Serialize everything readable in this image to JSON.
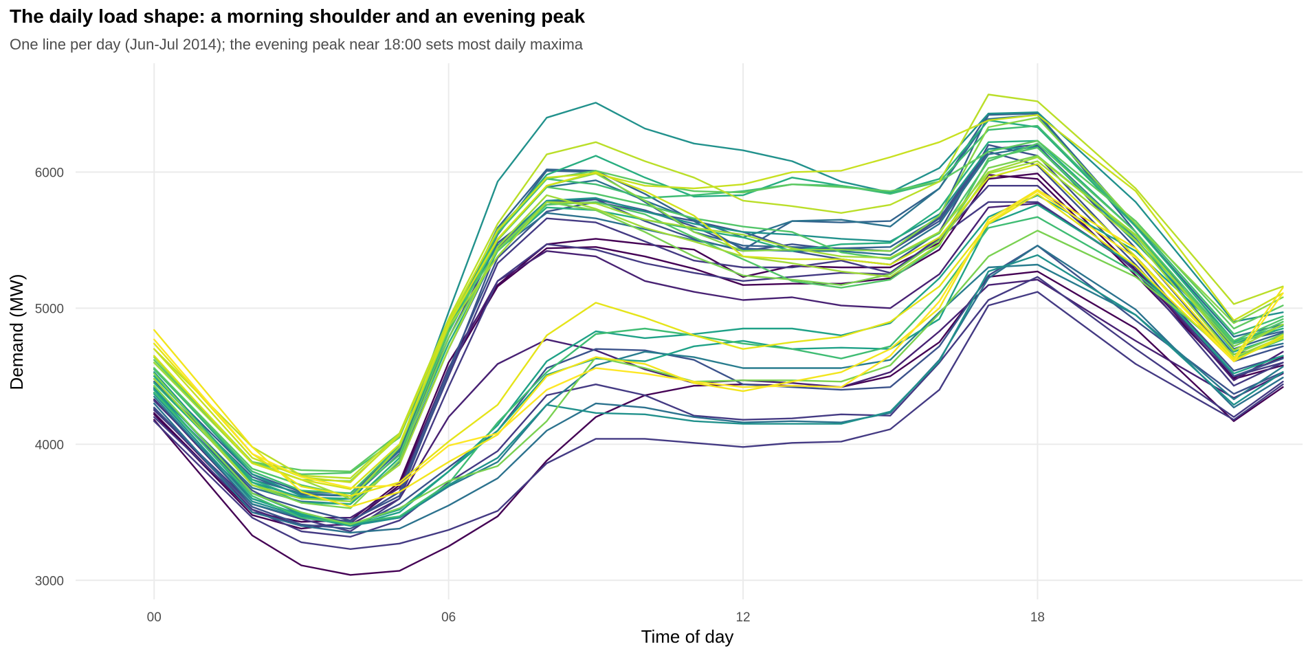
{
  "chart_data": {
    "type": "line",
    "title": "The daily load shape: a morning shoulder and an evening peak",
    "subtitle": "One line per day (Jun-Jul 2014); the evening peak near 18:00 sets most daily maxima",
    "xlabel": "Time of day",
    "ylabel": "Demand (MW)",
    "x": [
      0,
      2,
      3,
      4,
      5,
      6,
      7,
      8,
      9,
      10,
      11,
      12,
      13,
      14,
      15,
      16,
      17,
      18,
      20,
      22,
      23
    ],
    "xlim": [
      -1.6,
      23.4
    ],
    "ylim": [
      2860,
      6800
    ],
    "x_ticks": [
      0,
      6,
      12,
      18
    ],
    "x_tick_labels": [
      "00",
      "06",
      "12",
      "18"
    ],
    "y_ticks": [
      3000,
      4000,
      5000,
      6000
    ],
    "y_tick_labels": [
      "3000",
      "4000",
      "5000",
      "6000"
    ],
    "grid": true,
    "legend": "none",
    "color_scale": "viridis, ordered by day",
    "series": [
      {
        "color": "#440154",
        "values": [
          4180,
          3330,
          3110,
          3040,
          3070,
          3250,
          3470,
          3880,
          4200,
          4360,
          4430,
          4440,
          4430,
          4420,
          4500,
          4750,
          5230,
          5270,
          4850,
          4170,
          4420
        ]
      },
      {
        "color": "#440154",
        "values": [
          4220,
          3480,
          3380,
          3420,
          3700,
          4550,
          5160,
          5440,
          5450,
          5380,
          5290,
          5170,
          5180,
          5180,
          5220,
          5430,
          5950,
          5990,
          5280,
          4480,
          4580
        ]
      },
      {
        "color": "#440154",
        "values": [
          4230,
          3500,
          3430,
          3440,
          3720,
          4600,
          5170,
          5470,
          5510,
          5470,
          5430,
          5230,
          5310,
          5300,
          5300,
          5480,
          5980,
          5950,
          5240,
          4490,
          4640
        ]
      },
      {
        "color": "#482173",
        "values": [
          4260,
          3520,
          3400,
          3410,
          3600,
          4200,
          4590,
          4770,
          4690,
          4550,
          4450,
          4470,
          4450,
          4420,
          4530,
          4830,
          5170,
          5210,
          4760,
          4340,
          4520
        ]
      },
      {
        "color": "#482173",
        "values": [
          4330,
          3560,
          3460,
          3460,
          3680,
          4560,
          5200,
          5420,
          5380,
          5200,
          5120,
          5060,
          5080,
          5020,
          5000,
          5250,
          5740,
          5770,
          5300,
          4470,
          4680
        ]
      },
      {
        "color": "#443a83",
        "values": [
          4170,
          3460,
          3280,
          3230,
          3270,
          3370,
          3510,
          3860,
          4040,
          4040,
          4010,
          3980,
          4010,
          4020,
          4110,
          4400,
          5020,
          5120,
          4590,
          4180,
          4440
        ]
      },
      {
        "color": "#443a83",
        "values": [
          4200,
          3520,
          3360,
          3320,
          3440,
          3720,
          3950,
          4360,
          4440,
          4360,
          4210,
          4180,
          4190,
          4220,
          4210,
          4600,
          5060,
          5230,
          4700,
          4200,
          4460
        ]
      },
      {
        "color": "#443a83",
        "values": [
          4250,
          3560,
          3450,
          3360,
          3600,
          4420,
          5200,
          5470,
          5430,
          5330,
          5260,
          5200,
          5230,
          5260,
          5250,
          5510,
          5900,
          5900,
          5270,
          4430,
          4600
        ]
      },
      {
        "color": "#443a83",
        "values": [
          4320,
          3600,
          3480,
          3430,
          3650,
          4500,
          5330,
          5660,
          5630,
          5490,
          5350,
          5300,
          5300,
          5350,
          5260,
          5520,
          5780,
          5780,
          5300,
          4500,
          4600
        ]
      },
      {
        "color": "#3b528b",
        "values": [
          4410,
          3660,
          3480,
          3430,
          3650,
          4550,
          5370,
          5710,
          5780,
          5710,
          5640,
          5560,
          5440,
          5440,
          5420,
          5640,
          6150,
          6050,
          5320,
          4540,
          4650
        ]
      },
      {
        "color": "#3b528b",
        "values": [
          4380,
          3640,
          3530,
          3440,
          3620,
          4520,
          5440,
          5780,
          5800,
          5720,
          5600,
          5440,
          5420,
          5360,
          5320,
          5560,
          6200,
          6120,
          5360,
          4500,
          4630
        ]
      },
      {
        "color": "#3b528b",
        "values": [
          4270,
          3540,
          3410,
          3380,
          3560,
          3830,
          4100,
          4560,
          4700,
          4690,
          4620,
          4440,
          4420,
          4400,
          4420,
          4720,
          5240,
          5460,
          4910,
          4370,
          4530
        ]
      },
      {
        "color": "#3b528b",
        "values": [
          4480,
          3700,
          3600,
          3600,
          3930,
          4780,
          5480,
          5760,
          5800,
          5640,
          5510,
          5420,
          5470,
          5430,
          5420,
          5660,
          6170,
          6200,
          5440,
          4610,
          4720
        ]
      },
      {
        "color": "#33638d",
        "values": [
          4460,
          3760,
          3630,
          3620,
          3950,
          4830,
          5540,
          6010,
          6000,
          5780,
          5560,
          5460,
          5450,
          5440,
          5450,
          5670,
          6420,
          6430,
          5560,
          4700,
          4820
        ]
      },
      {
        "color": "#33638d",
        "values": [
          4500,
          3780,
          3650,
          3640,
          3970,
          4840,
          5590,
          6020,
          6010,
          5840,
          5640,
          5430,
          5640,
          5630,
          5640,
          5880,
          6430,
          6430,
          5610,
          4750,
          4830
        ]
      },
      {
        "color": "#2c728e",
        "values": [
          4400,
          3680,
          3580,
          3560,
          3870,
          4700,
          5430,
          5700,
          5660,
          5580,
          5500,
          5430,
          5420,
          5420,
          5390,
          5620,
          6130,
          6190,
          5510,
          4660,
          4740
        ]
      },
      {
        "color": "#2c728e",
        "values": [
          4300,
          3500,
          3400,
          3350,
          3380,
          3550,
          3750,
          4100,
          4300,
          4270,
          4200,
          4160,
          4170,
          4160,
          4230,
          4620,
          5220,
          5460,
          4990,
          4270,
          4490
        ]
      },
      {
        "color": "#2c728e",
        "values": [
          4500,
          3740,
          3640,
          3620,
          3960,
          4860,
          5500,
          5890,
          5940,
          5790,
          5650,
          5520,
          5640,
          5650,
          5600,
          5880,
          6390,
          6420,
          5600,
          4790,
          4880
        ]
      },
      {
        "color": "#287c8e",
        "values": [
          4350,
          3560,
          3460,
          3410,
          3460,
          3690,
          3870,
          4290,
          4580,
          4680,
          4640,
          4560,
          4560,
          4560,
          4620,
          4970,
          5300,
          5320,
          4950,
          4330,
          4570
        ]
      },
      {
        "color": "#21918c",
        "values": [
          4560,
          3780,
          3620,
          3580,
          3980,
          4970,
          5930,
          6400,
          6510,
          6320,
          6210,
          6160,
          6080,
          5930,
          5850,
          6030,
          6430,
          6440,
          5780,
          4900,
          4970
        ]
      },
      {
        "color": "#21918c",
        "values": [
          4530,
          3720,
          3610,
          3600,
          3980,
          4870,
          5460,
          5790,
          5810,
          5710,
          5620,
          5560,
          5540,
          5510,
          5490,
          5690,
          6170,
          6180,
          5480,
          4740,
          4850
        ]
      },
      {
        "color": "#21918c",
        "values": [
          4370,
          3580,
          3470,
          3400,
          3460,
          3700,
          3900,
          4290,
          4230,
          4220,
          4170,
          4150,
          4150,
          4150,
          4240,
          4610,
          5270,
          5390,
          4950,
          4290,
          4530
        ]
      },
      {
        "color": "#1fa187",
        "values": [
          4420,
          3640,
          3490,
          3410,
          3520,
          3800,
          4140,
          4610,
          4830,
          4780,
          4810,
          4850,
          4850,
          4800,
          4890,
          5220,
          5670,
          5830,
          5420,
          4750,
          4870
        ]
      },
      {
        "color": "#1fa187",
        "values": [
          4400,
          3600,
          3480,
          3400,
          3500,
          3800,
          4100,
          4510,
          4630,
          4610,
          4720,
          4760,
          4700,
          4710,
          4700,
          4920,
          5620,
          5760,
          5310,
          4520,
          4650
        ]
      },
      {
        "color": "#28ae80",
        "values": [
          4500,
          3740,
          3600,
          3600,
          3980,
          4830,
          5560,
          5980,
          6120,
          5960,
          5820,
          5830,
          5960,
          5900,
          5850,
          5950,
          6380,
          6330,
          5600,
          4760,
          4850
        ]
      },
      {
        "color": "#28ae80",
        "values": [
          4450,
          3720,
          3570,
          3560,
          3900,
          4740,
          5420,
          5740,
          5720,
          5650,
          5580,
          5520,
          5420,
          5470,
          5480,
          5730,
          6220,
          6230,
          5560,
          4680,
          4800
        ]
      },
      {
        "color": "#3fbc73",
        "values": [
          4550,
          3800,
          3660,
          3640,
          3990,
          4850,
          5550,
          5950,
          5910,
          5810,
          5830,
          5860,
          5910,
          5900,
          5840,
          5930,
          6310,
          6340,
          5620,
          4810,
          4940
        ]
      },
      {
        "color": "#3fbc73",
        "values": [
          4380,
          3620,
          3460,
          3420,
          3470,
          3710,
          4160,
          4530,
          4810,
          4850,
          4800,
          4740,
          4700,
          4630,
          4720,
          5100,
          5590,
          5670,
          5260,
          4630,
          4770
        ]
      },
      {
        "color": "#52c569",
        "values": [
          4600,
          3870,
          3780,
          3790,
          4050,
          4900,
          5420,
          5760,
          5780,
          5690,
          5520,
          5360,
          5200,
          5150,
          5210,
          5460,
          6100,
          6180,
          5500,
          4760,
          4920
        ]
      },
      {
        "color": "#52c569",
        "values": [
          4560,
          3820,
          3700,
          3620,
          3920,
          4820,
          5500,
          5890,
          5840,
          5760,
          5660,
          5600,
          5560,
          5410,
          5360,
          5550,
          6080,
          6210,
          5560,
          4740,
          4900
        ]
      },
      {
        "color": "#5ec962",
        "values": [
          4620,
          3870,
          3810,
          3800,
          4080,
          4880,
          5580,
          5950,
          6010,
          5920,
          5860,
          5850,
          5910,
          5890,
          5860,
          5930,
          6150,
          6230,
          5640,
          4850,
          5020
        ]
      },
      {
        "color": "#7ad151",
        "values": [
          4520,
          3700,
          3570,
          3530,
          3880,
          4780,
          5430,
          5780,
          5720,
          5560,
          5380,
          5240,
          5210,
          5170,
          5250,
          5500,
          6030,
          6120,
          5530,
          4720,
          4880
        ]
      },
      {
        "color": "#7ad151",
        "values": [
          4430,
          3640,
          3500,
          3410,
          3530,
          3730,
          3840,
          4170,
          4640,
          4560,
          4460,
          4470,
          4470,
          4460,
          4580,
          4960,
          5380,
          5570,
          5230,
          4660,
          4810
        ]
      },
      {
        "color": "#86d549",
        "values": [
          4640,
          3870,
          3740,
          3730,
          4060,
          4890,
          5500,
          5900,
          5990,
          5790,
          5560,
          5420,
          5430,
          5430,
          5420,
          5680,
          6330,
          6400,
          5620,
          4890,
          5080
        ]
      },
      {
        "color": "#a0da39",
        "values": [
          4600,
          3860,
          3740,
          3600,
          3980,
          4860,
          5380,
          5780,
          5770,
          5650,
          5590,
          5540,
          5440,
          5380,
          5370,
          5560,
          6000,
          6110,
          5540,
          4690,
          4880
        ]
      },
      {
        "color": "#a0da39",
        "values": [
          4480,
          3700,
          3600,
          3580,
          3850,
          4700,
          5450,
          5830,
          5730,
          5590,
          5490,
          5380,
          5330,
          5270,
          5230,
          5470,
          5990,
          6080,
          5500,
          4640,
          4790
        ]
      },
      {
        "color": "#bade28",
        "values": [
          4700,
          3980,
          3770,
          3750,
          4080,
          4920,
          5620,
          6130,
          6220,
          6080,
          5960,
          5790,
          5750,
          5700,
          5760,
          5930,
          6570,
          6520,
          5880,
          5030,
          5160
        ]
      },
      {
        "color": "#c8e020",
        "values": [
          4700,
          3900,
          3760,
          3720,
          4070,
          4900,
          5570,
          5960,
          5990,
          5900,
          5880,
          5910,
          6000,
          6010,
          6110,
          6220,
          6380,
          6420,
          5860,
          4910,
          5110
        ]
      },
      {
        "color": "#d2e21b",
        "values": [
          4650,
          3860,
          3740,
          3670,
          4000,
          4880,
          5510,
          5900,
          6000,
          5860,
          5680,
          5380,
          5360,
          5360,
          5320,
          5520,
          5960,
          6060,
          5380,
          4620,
          4780
        ]
      },
      {
        "color": "#e5e419",
        "values": [
          4740,
          3930,
          3690,
          3620,
          3720,
          4020,
          4290,
          4800,
          5040,
          4930,
          4800,
          4700,
          4750,
          4790,
          4900,
          5160,
          5620,
          5840,
          5310,
          4610,
          4800
        ]
      },
      {
        "color": "#f2e51d",
        "values": [
          4840,
          3980,
          3650,
          3540,
          3650,
          3870,
          4070,
          4500,
          4640,
          4590,
          4450,
          4390,
          4460,
          4530,
          4700,
          5000,
          5650,
          5870,
          5440,
          4630,
          5150
        ]
      },
      {
        "color": "#fde725",
        "values": [
          4770,
          3930,
          3760,
          3680,
          3700,
          3990,
          4080,
          4400,
          4560,
          4520,
          4460,
          4420,
          4430,
          4420,
          4650,
          5050,
          5630,
          5860,
          5370,
          4610,
          5110
        ]
      }
    ]
  }
}
